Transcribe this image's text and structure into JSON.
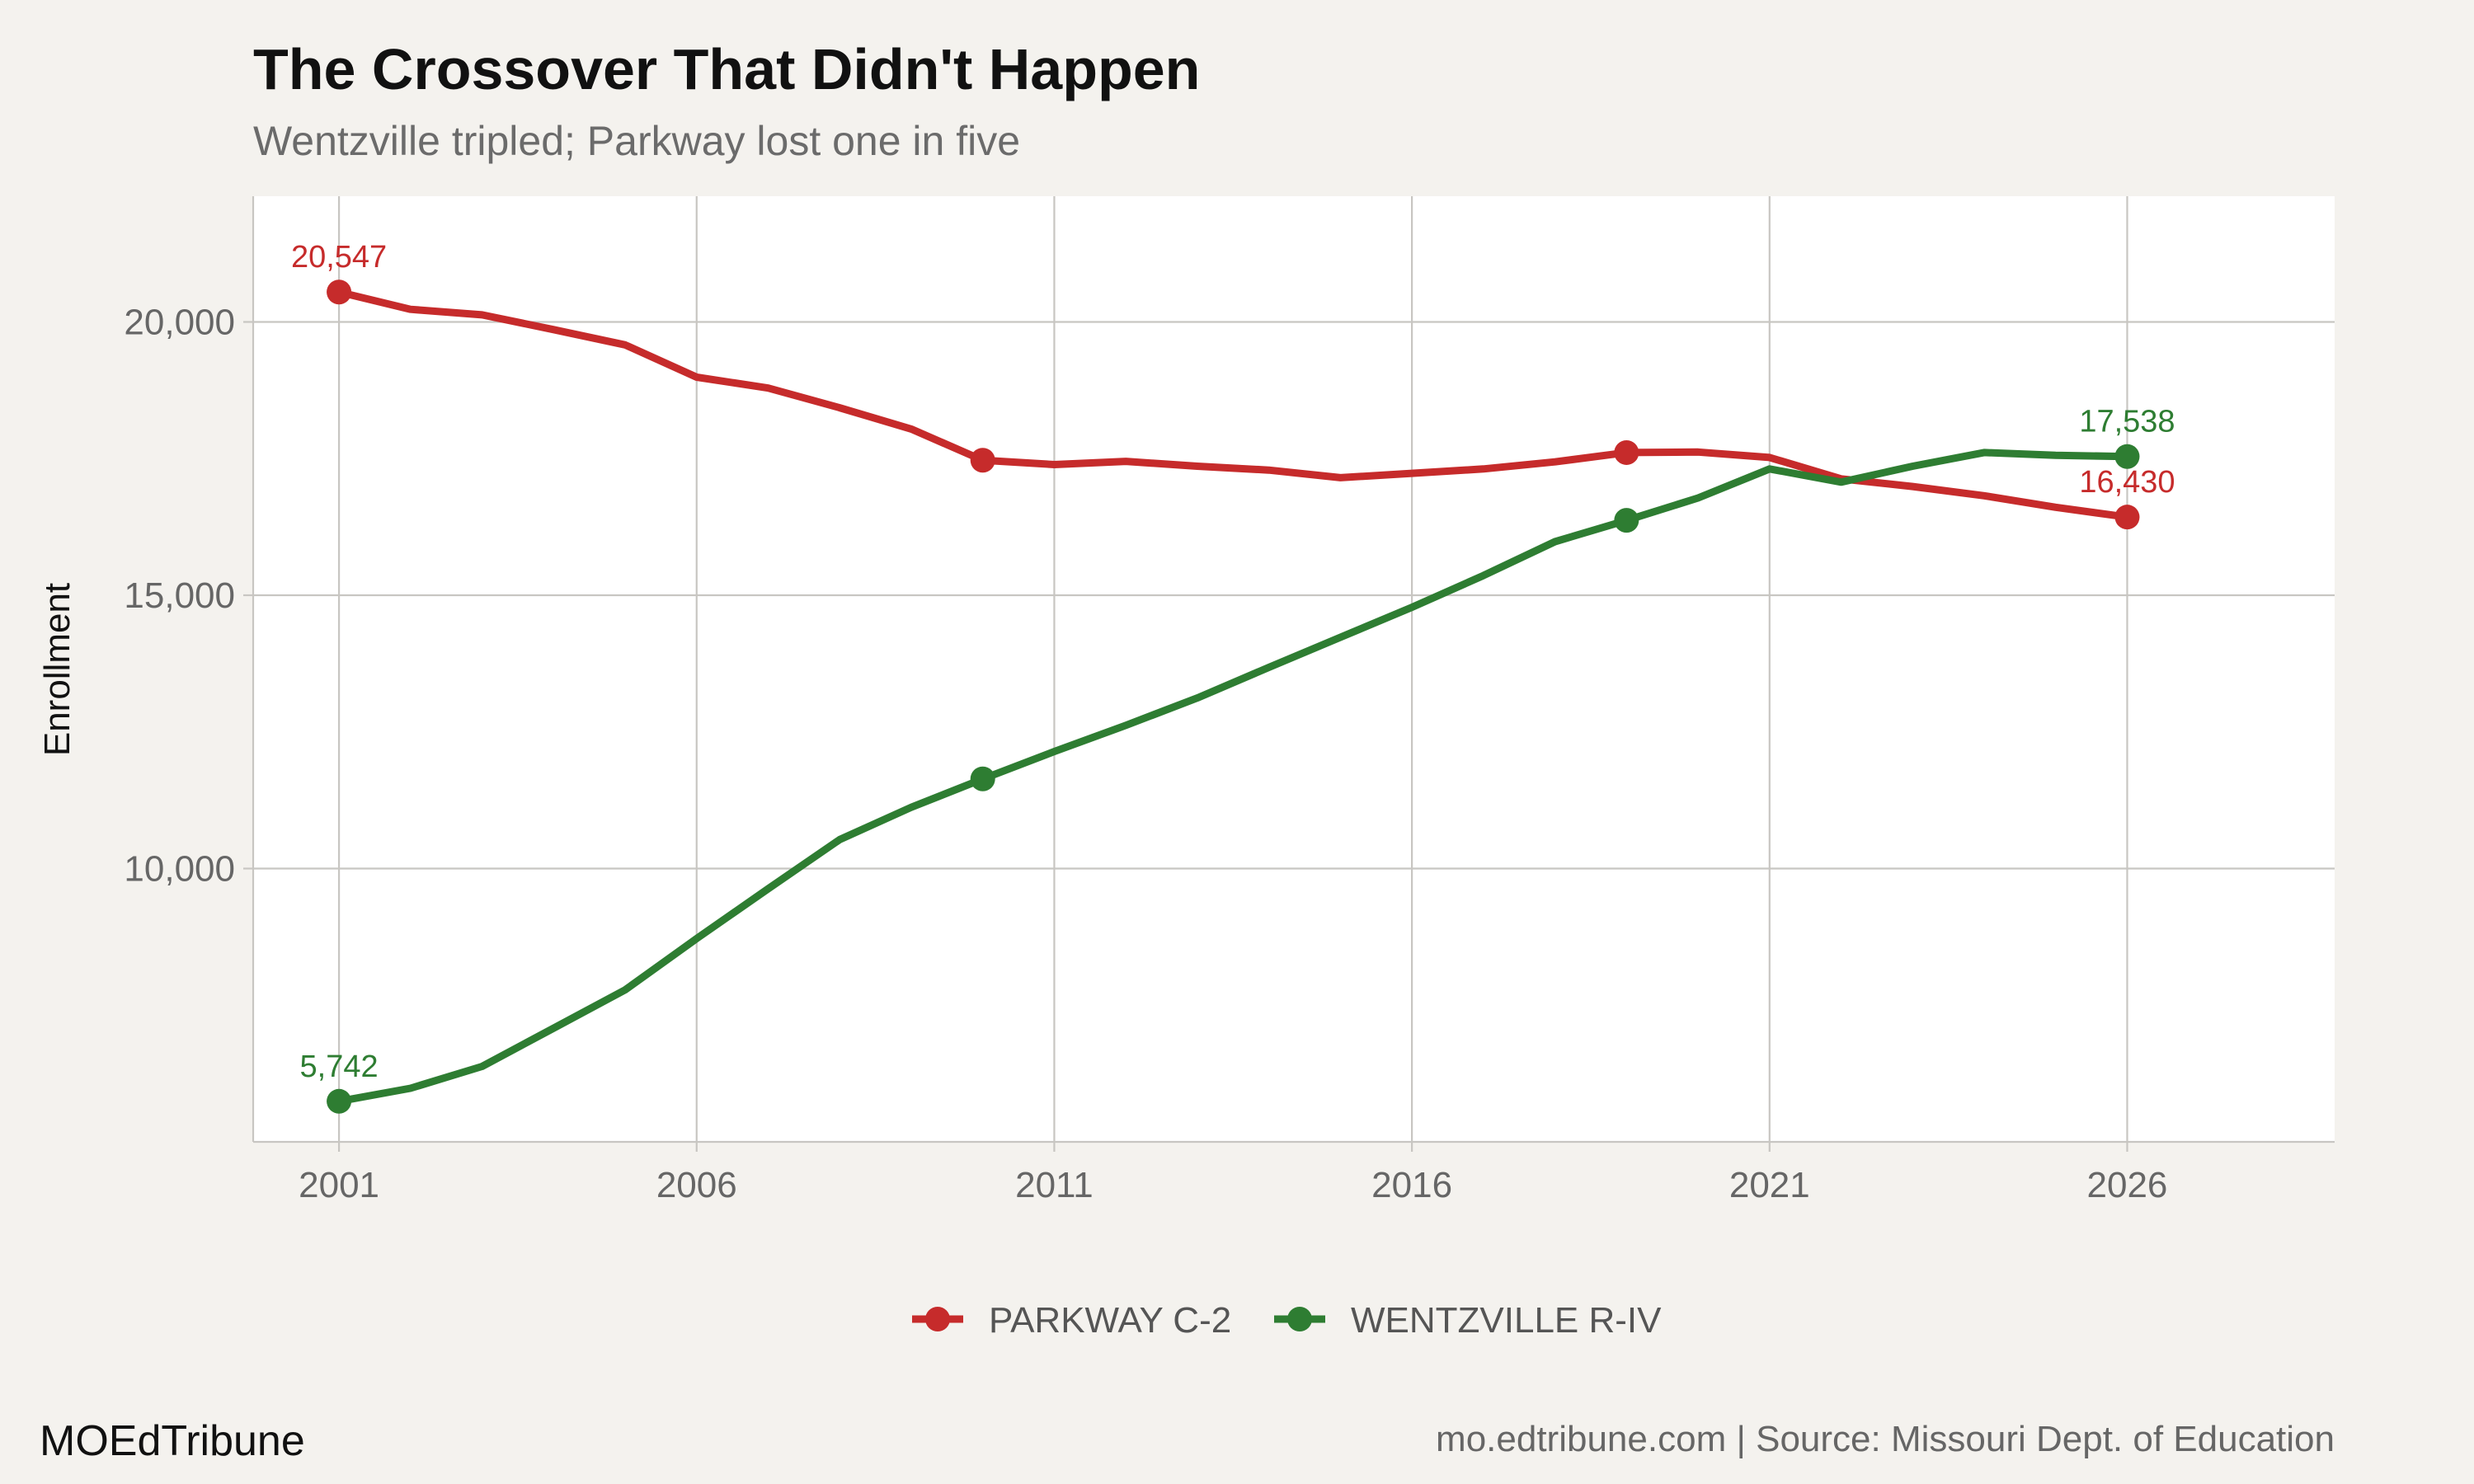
{
  "header": {
    "title": "The Crossover That Didn't Happen",
    "subtitle": "Wentzville tripled; Parkway lost one in five"
  },
  "footer": {
    "brand": "MOEdTribune",
    "source": "mo.edtribune.com | Source: Missouri Dept. of Education"
  },
  "chart_data": {
    "type": "line",
    "title": "The Crossover That Didn't Happen",
    "subtitle": "Wentzville tripled; Parkway lost one in five",
    "xlabel": "",
    "ylabel": "Enrollment",
    "xlim": [
      1999.8,
      2028.9
    ],
    "ylim": [
      5000,
      22300
    ],
    "x_ticks": [
      2001,
      2006,
      2011,
      2016,
      2021,
      2026
    ],
    "y_ticks": [
      10000,
      15000,
      20000
    ],
    "x": [
      2001,
      2002,
      2003,
      2004,
      2005,
      2006,
      2007,
      2008,
      2009,
      2010,
      2011,
      2012,
      2013,
      2014,
      2015,
      2016,
      2017,
      2018,
      2019,
      2020,
      2021,
      2022,
      2023,
      2024,
      2025,
      2026
    ],
    "grid": true,
    "legend_position": "bottom",
    "series": [
      {
        "name": "PARKWAY C-2",
        "color": "#c62b2b",
        "values": [
          20547,
          20230,
          20130,
          19860,
          19580,
          18990,
          18790,
          18430,
          18040,
          17470,
          17390,
          17450,
          17360,
          17290,
          17150,
          17230,
          17310,
          17440,
          17610,
          17620,
          17520,
          17130,
          16990,
          16820,
          16610,
          16430
        ],
        "highlight_x": [
          2001,
          2010,
          2019,
          2026
        ],
        "labels": [
          {
            "x": 2001,
            "text": "20,547"
          },
          {
            "x": 2026,
            "text": "16,430"
          }
        ]
      },
      {
        "name": "WENTZVILLE R-IV",
        "color": "#2e7d32",
        "values": [
          5742,
          5980,
          6380,
          7080,
          7780,
          8720,
          9630,
          10530,
          11120,
          11640,
          12140,
          12620,
          13120,
          13680,
          14230,
          14780,
          15360,
          15980,
          16370,
          16780,
          17310,
          17070,
          17360,
          17610,
          17560,
          17538
        ],
        "highlight_x": [
          2001,
          2010,
          2019,
          2026
        ],
        "labels": [
          {
            "x": 2001,
            "text": "5,742"
          },
          {
            "x": 2026,
            "text": "17,538"
          }
        ]
      }
    ]
  }
}
